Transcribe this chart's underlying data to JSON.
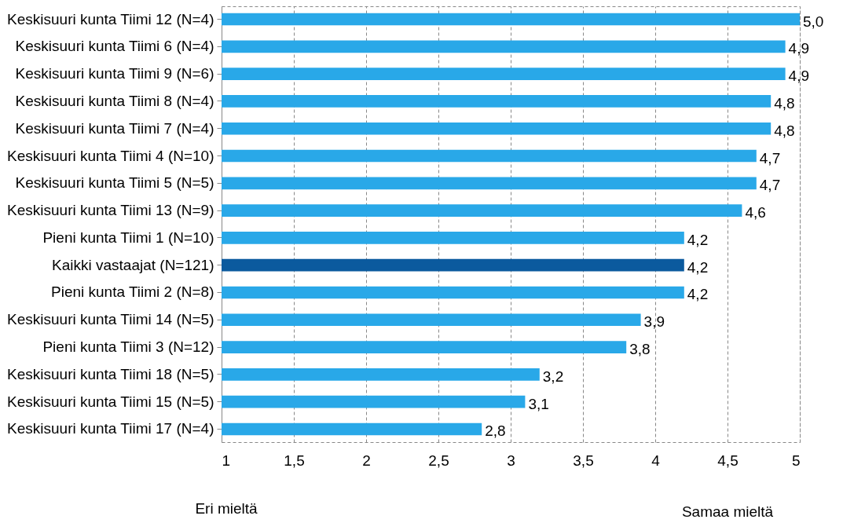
{
  "chart_data": {
    "type": "bar",
    "orientation": "horizontal",
    "categories": [
      "Keskisuuri kunta Tiimi 12 (N=4)",
      "Keskisuuri kunta Tiimi 6 (N=4)",
      "Keskisuuri kunta Tiimi 9 (N=6)",
      "Keskisuuri kunta Tiimi 8 (N=4)",
      "Keskisuuri kunta Tiimi 7 (N=4)",
      "Keskisuuri kunta Tiimi 4 (N=10)",
      "Keskisuuri kunta Tiimi 5 (N=5)",
      "Keskisuuri kunta Tiimi 13 (N=9)",
      "Pieni kunta Tiimi 1 (N=10)",
      "Kaikki vastaajat (N=121)",
      "Pieni kunta Tiimi 2 (N=8)",
      "Keskisuuri kunta Tiimi 14 (N=5)",
      "Pieni kunta Tiimi 3 (N=12)",
      "Keskisuuri kunta Tiimi 18 (N=5)",
      "Keskisuuri kunta Tiimi 15 (N=5)",
      "Keskisuuri kunta Tiimi 17 (N=4)"
    ],
    "values": [
      5.0,
      4.9,
      4.9,
      4.8,
      4.8,
      4.7,
      4.7,
      4.6,
      4.2,
      4.2,
      4.2,
      3.9,
      3.8,
      3.2,
      3.1,
      2.8
    ],
    "value_labels": [
      "5,0",
      "4,9",
      "4,9",
      "4,8",
      "4,8",
      "4,7",
      "4,7",
      "4,6",
      "4,2",
      "4,2",
      "4,2",
      "3,9",
      "3,8",
      "3,2",
      "3,1",
      "2,8"
    ],
    "colors": [
      "#29a8e8",
      "#29a8e8",
      "#29a8e8",
      "#29a8e8",
      "#29a8e8",
      "#29a8e8",
      "#29a8e8",
      "#29a8e8",
      "#29a8e8",
      "#0b5a9e",
      "#29a8e8",
      "#29a8e8",
      "#29a8e8",
      "#29a8e8",
      "#29a8e8",
      "#29a8e8"
    ],
    "xlim": [
      1,
      5
    ],
    "xticks": [
      {
        "value": 1,
        "label": "1"
      },
      {
        "value": 1.5,
        "label": "1,5"
      },
      {
        "value": 2,
        "label": "2"
      },
      {
        "value": 2.5,
        "label": "2,5"
      },
      {
        "value": 3,
        "label": "3"
      },
      {
        "value": 3.5,
        "label": "3,5"
      },
      {
        "value": 4,
        "label": "4"
      },
      {
        "value": 4.5,
        "label": "4,5"
      },
      {
        "value": 5,
        "label": "5"
      }
    ],
    "grid": "x",
    "annotations": [
      "Eri mieltä",
      "Samaa mieltä"
    ]
  }
}
